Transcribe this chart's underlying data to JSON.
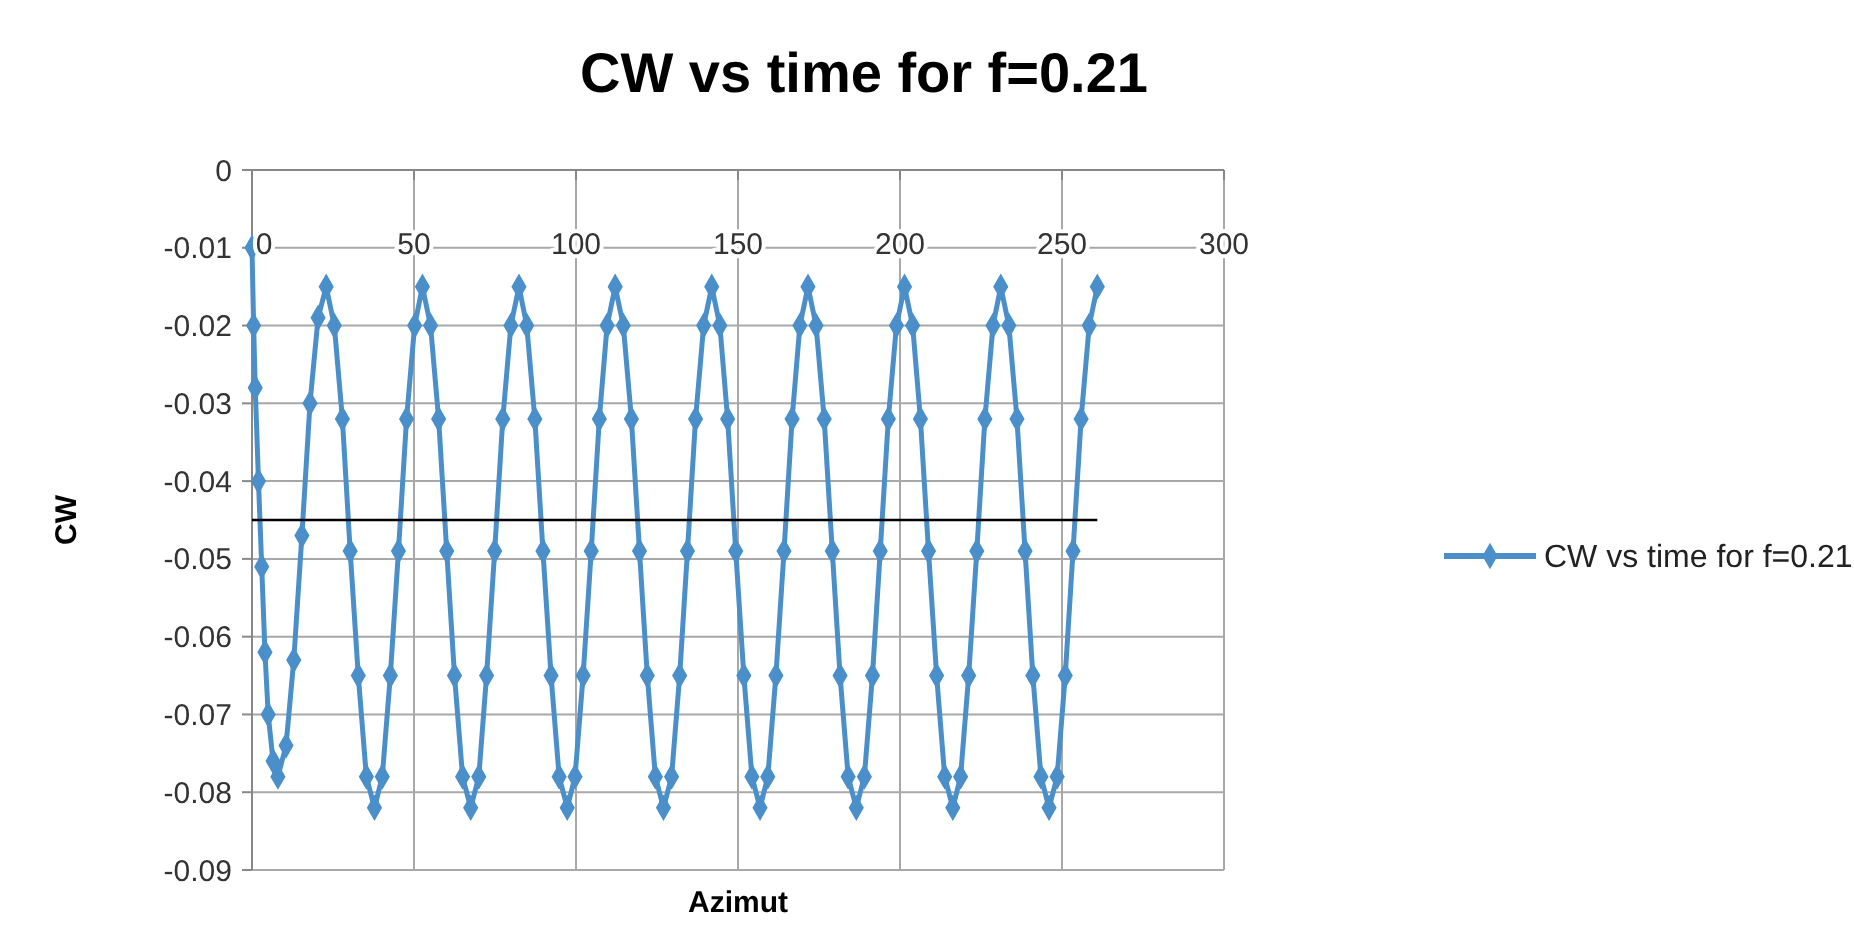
{
  "chart_data": {
    "type": "line",
    "title": "CW vs time for f=0.21",
    "xlabel": "Azimut",
    "ylabel": "CW",
    "x": [
      0,
      0.5,
      1,
      2,
      3,
      4,
      5,
      6.5,
      8,
      10.5,
      12.9,
      15.4,
      17.9,
      20.4,
      22.9,
      25.4,
      27.9,
      30.3,
      32.8,
      35.3,
      37.8,
      40.2,
      42.7,
      45.2,
      47.7,
      50.2,
      52.6,
      55.1,
      57.6,
      60.1,
      62.5,
      65.0,
      67.5,
      70.0,
      72.4,
      74.9,
      77.4,
      79.9,
      82.4,
      84.8,
      87.3,
      89.8,
      92.3,
      94.8,
      97.3,
      99.7,
      102.2,
      104.7,
      107.2,
      109.6,
      112.1,
      114.6,
      117.1,
      119.6,
      122.0,
      124.5,
      127.0,
      129.5,
      132.0,
      134.4,
      136.9,
      139.4,
      141.9,
      144.4,
      146.8,
      149.3,
      151.8,
      154.3,
      156.8,
      159.2,
      161.7,
      164.2,
      166.7,
      169.1,
      171.6,
      174.1,
      176.6,
      179.1,
      181.5,
      184.0,
      186.5,
      189.0,
      191.5,
      193.9,
      196.4,
      198.9,
      201.4,
      203.9,
      206.3,
      208.8,
      211.3,
      213.8,
      216.3,
      218.7,
      221.2,
      223.7,
      226.2,
      228.7,
      231.1,
      233.6,
      236.1,
      238.6,
      241.0,
      243.5,
      246.0,
      248.5,
      251.0,
      253.4,
      255.9,
      258.4,
      260.9
    ],
    "series": [
      {
        "name": "CW vs time for f=0.21",
        "color": "#4a8fc9",
        "values": [
          -0.01,
          -0.02,
          -0.028,
          -0.04,
          -0.051,
          -0.062,
          -0.07,
          -0.076,
          -0.078,
          -0.074,
          -0.063,
          -0.047,
          -0.03,
          -0.019,
          -0.015,
          -0.02,
          -0.032,
          -0.049,
          -0.065,
          -0.078,
          -0.082,
          -0.078,
          -0.065,
          -0.049,
          -0.032,
          -0.02,
          -0.015,
          -0.02,
          -0.032,
          -0.049,
          -0.065,
          -0.078,
          -0.082,
          -0.078,
          -0.065,
          -0.049,
          -0.032,
          -0.02,
          -0.015,
          -0.02,
          -0.032,
          -0.049,
          -0.065,
          -0.078,
          -0.082,
          -0.078,
          -0.065,
          -0.049,
          -0.032,
          -0.02,
          -0.015,
          -0.02,
          -0.032,
          -0.049,
          -0.065,
          -0.078,
          -0.082,
          -0.078,
          -0.065,
          -0.049,
          -0.032,
          -0.02,
          -0.015,
          -0.02,
          -0.032,
          -0.049,
          -0.065,
          -0.078,
          -0.082,
          -0.078,
          -0.065,
          -0.049,
          -0.032,
          -0.02,
          -0.015,
          -0.02,
          -0.032,
          -0.049,
          -0.065,
          -0.078,
          -0.082,
          -0.078,
          -0.065,
          -0.049,
          -0.032,
          -0.02,
          -0.015,
          -0.02,
          -0.032,
          -0.049,
          -0.065,
          -0.078,
          -0.082,
          -0.078,
          -0.065,
          -0.049,
          -0.032,
          -0.02,
          -0.015,
          -0.02,
          -0.032,
          -0.049,
          -0.065,
          -0.078,
          -0.082,
          -0.078,
          -0.065,
          -0.049,
          -0.032,
          -0.02,
          -0.015
        ]
      }
    ],
    "xlim": [
      0,
      300
    ],
    "xticks": [
      0,
      50,
      100,
      150,
      200,
      250,
      300
    ],
    "ylim": [
      -0.09,
      0
    ],
    "yticks": [
      -0.09,
      -0.08,
      -0.07,
      -0.06,
      -0.05,
      -0.04,
      -0.03,
      -0.02,
      -0.01,
      0
    ],
    "grid": true,
    "legend": "right",
    "marker": "diamond",
    "ref_lines": [
      {
        "axis": "y",
        "value": -0.045,
        "color": "#000000"
      }
    ]
  }
}
